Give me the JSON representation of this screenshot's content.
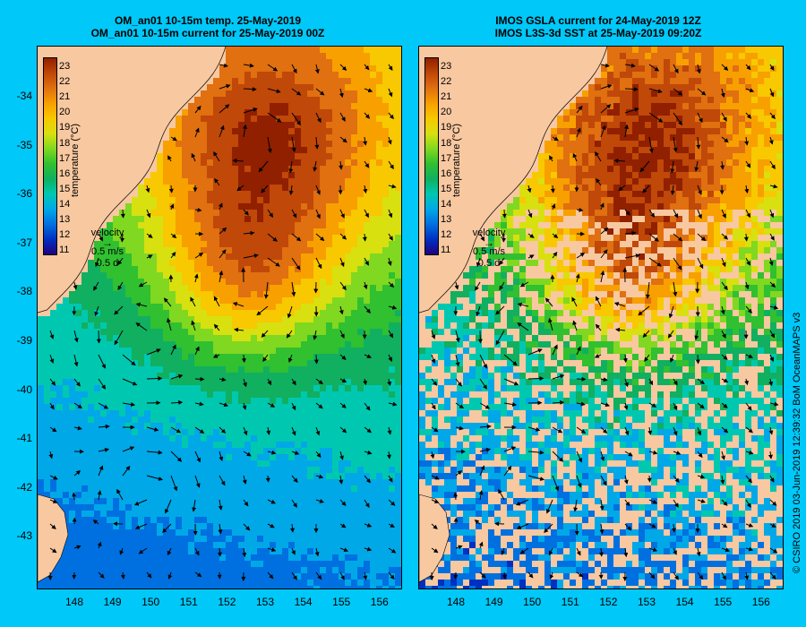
{
  "colors": {
    "background": "#00c8f8",
    "land": "#f8c8a0",
    "scale": [
      "#200080",
      "#0030c0",
      "#0070e0",
      "#00a8e8",
      "#00c8b0",
      "#10b060",
      "#30c030",
      "#80d820",
      "#d8e010",
      "#f8c800",
      "#f8a000",
      "#e07010",
      "#c04808",
      "#902000"
    ]
  },
  "left_panel": {
    "title_line1": "OM_an01 10-15m temp. 25-May-2019",
    "title_line2": "OM_an01 10-15m current for 25-May-2019 00Z"
  },
  "right_panel": {
    "title_line1": "IMOS GSLA current for 24-May-2019 12Z",
    "title_line2": "IMOS L3S-3d SST at 25-May-2019 09:20Z"
  },
  "colorbar": {
    "title": "temperature (°C)",
    "labels": [
      "23",
      "22",
      "21",
      "20",
      "19",
      "18",
      "17",
      "16",
      "15",
      "14",
      "13",
      "12",
      "11"
    ]
  },
  "velocity_legend": {
    "label": "velocity",
    "speed": "0.5 m/s",
    "duration": "0.5 d"
  },
  "axes": {
    "lat_labels": [
      "-34",
      "-35",
      "-36",
      "-37",
      "-38",
      "-39",
      "-40",
      "-41",
      "-42",
      "-43"
    ],
    "lon_labels": [
      "148",
      "149",
      "150",
      "151",
      "152",
      "153",
      "154",
      "155",
      "156"
    ]
  },
  "credit": "© CSIRO 2019   03-Jun-2019 12:39:32 BoM OceanMAPS v3"
}
